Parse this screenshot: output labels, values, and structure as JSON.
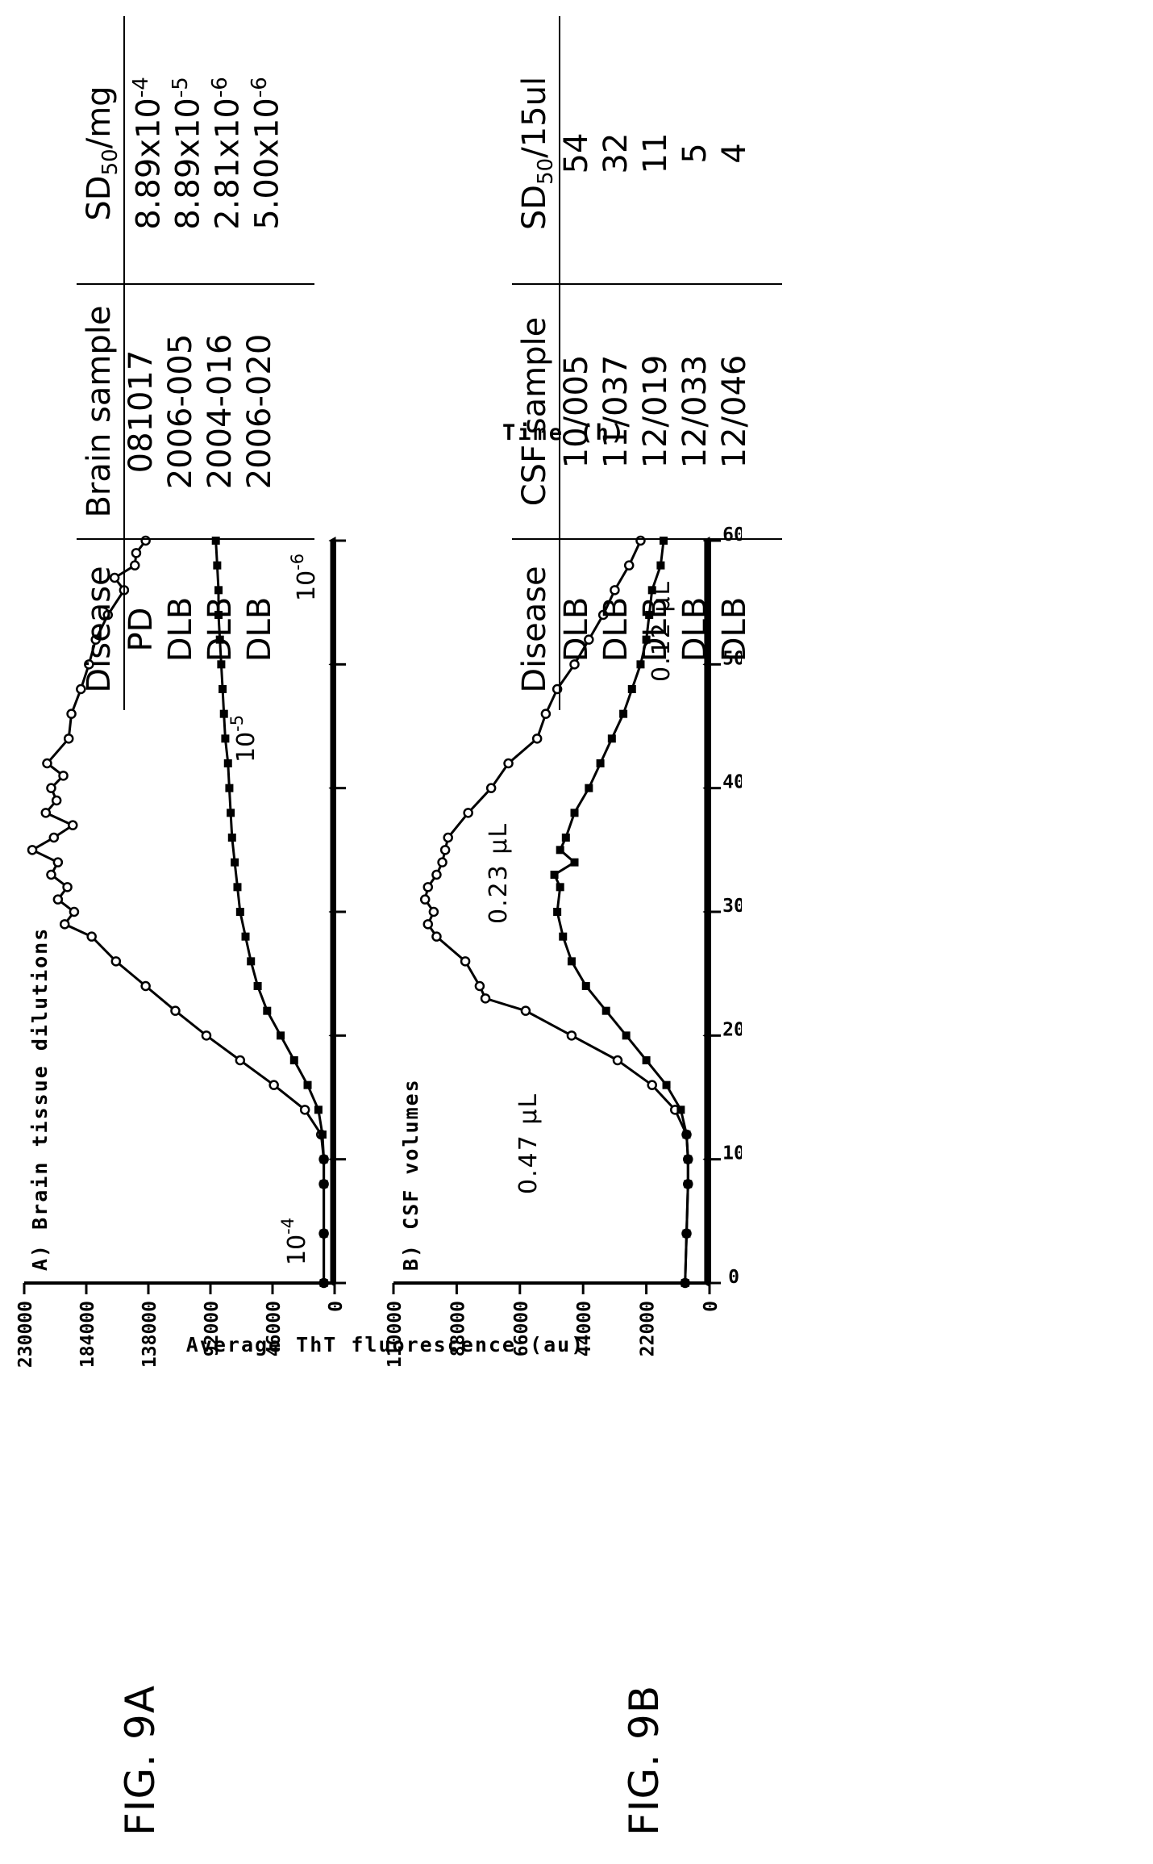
{
  "figure_labels": {
    "a": "FIG. 9A",
    "b": "FIG. 9B"
  },
  "axes": {
    "ylabel": "Average ThT fluorescence (au)",
    "xlabel": "Time (h)",
    "x_ticks": [
      "0",
      "10",
      "20",
      "30",
      "40",
      "50",
      "60"
    ]
  },
  "chart_data": [
    {
      "type": "line",
      "title": "A) Brain tissue dilutions",
      "xlabel": "Time (h)",
      "ylabel": "Average ThT fluorescence (au)",
      "xlim": [
        0,
        60
      ],
      "ylim": [
        0,
        230000
      ],
      "y_ticks": [
        "0",
        "46000",
        "92000",
        "138000",
        "184000",
        "230000"
      ],
      "grid": false,
      "series": [
        {
          "name": "10-4",
          "label_base": "10",
          "label_exp": "-4",
          "marker": "circle",
          "x": [
            0,
            4,
            8,
            10,
            12,
            14,
            16,
            18,
            20,
            22,
            24,
            26,
            28,
            29,
            30,
            31,
            32,
            33,
            34,
            35,
            36,
            37,
            38,
            39,
            40,
            41,
            42,
            44,
            46,
            48,
            50,
            52,
            54,
            56,
            57,
            58,
            59,
            60
          ],
          "y": [
            8000,
            8000,
            8000,
            8000,
            10000,
            22000,
            45000,
            70000,
            95000,
            118000,
            140000,
            162000,
            180000,
            200000,
            193000,
            205000,
            198000,
            210000,
            205000,
            224000,
            208000,
            194000,
            214000,
            206000,
            210000,
            201000,
            213000,
            197000,
            195000,
            188000,
            182000,
            177000,
            168000,
            156000,
            163000,
            148000,
            147000,
            140000
          ]
        },
        {
          "name": "10-5",
          "label_base": "10",
          "label_exp": "-5",
          "marker": "square",
          "x": [
            0,
            4,
            8,
            10,
            12,
            14,
            16,
            18,
            20,
            22,
            24,
            26,
            28,
            30,
            32,
            34,
            36,
            38,
            40,
            42,
            44,
            46,
            48,
            50,
            52,
            54,
            56,
            58,
            60
          ],
          "y": [
            8000,
            8000,
            8000,
            8000,
            9000,
            12000,
            20000,
            30000,
            40000,
            50000,
            57000,
            62000,
            66000,
            70000,
            72000,
            74000,
            76000,
            77000,
            78000,
            79000,
            81000,
            82000,
            83000,
            84000,
            85000,
            86000,
            86000,
            87000,
            88000
          ]
        },
        {
          "name": "10-6",
          "label_base": "10",
          "label_exp": "-6",
          "marker": "triangle",
          "x": [
            0,
            10,
            20,
            30,
            40,
            50,
            60
          ],
          "y": [
            1500,
            1500,
            1500,
            1500,
            1500,
            1500,
            1500
          ]
        }
      ]
    },
    {
      "type": "line",
      "title": "B) CSF volumes",
      "xlabel": "Time (h)",
      "ylabel": "Average ThT fluorescence (au)",
      "xlim": [
        0,
        60
      ],
      "ylim": [
        0,
        110000
      ],
      "y_ticks": [
        "0",
        "22000",
        "44000",
        "66000",
        "88000",
        "110000"
      ],
      "grid": false,
      "series": [
        {
          "name": "0.47 µL",
          "marker": "circle",
          "x": [
            0,
            4,
            8,
            10,
            12,
            14,
            16,
            18,
            20,
            22,
            23,
            24,
            26,
            28,
            29,
            30,
            31,
            32,
            33,
            34,
            35,
            36,
            38,
            40,
            42,
            44,
            46,
            48,
            50,
            52,
            54,
            56,
            58,
            60
          ],
          "y": [
            8500,
            8000,
            7500,
            7500,
            8000,
            12000,
            20000,
            32000,
            48000,
            64000,
            78000,
            80000,
            85000,
            95000,
            98000,
            96000,
            99000,
            98000,
            95000,
            93000,
            92000,
            91000,
            84000,
            76000,
            70000,
            60000,
            57000,
            53000,
            47000,
            42000,
            37000,
            33000,
            28000,
            24000
          ]
        },
        {
          "name": "0.23 µL",
          "marker": "square",
          "x": [
            0,
            4,
            8,
            10,
            12,
            14,
            16,
            18,
            20,
            22,
            24,
            26,
            28,
            30,
            32,
            33,
            34,
            35,
            36,
            38,
            40,
            42,
            44,
            46,
            48,
            50,
            52,
            54,
            56,
            58,
            60
          ],
          "y": [
            8500,
            8000,
            7500,
            7500,
            8000,
            10000,
            15000,
            22000,
            29000,
            36000,
            43000,
            48000,
            51000,
            53000,
            52000,
            54000,
            47000,
            52000,
            50000,
            47000,
            42000,
            38000,
            34000,
            30000,
            27000,
            24000,
            22000,
            21000,
            20000,
            17000,
            16000
          ]
        },
        {
          "name": "0.12 µL",
          "marker": "triangle",
          "x": [
            0,
            10,
            20,
            30,
            40,
            50,
            60
          ],
          "y": [
            1000,
            1000,
            1000,
            1000,
            1000,
            1000,
            1000
          ]
        }
      ]
    }
  ],
  "table_a": {
    "headers": {
      "disease": "Disease",
      "sample": "Brain sample",
      "sd_base": "SD",
      "sd_sub": "50",
      "sd_unit": "/mg"
    },
    "disease": [
      "PD",
      "DLB",
      "DLB",
      "DLB"
    ],
    "sample": [
      "081017",
      "2006-005",
      "2004-016",
      "2006-020"
    ],
    "sd_mantissa": [
      "8.89x10",
      "8.89x10",
      "2.81x10",
      "5.00x10"
    ],
    "sd_exp": [
      "-4",
      "-5",
      "-6",
      "-6"
    ]
  },
  "table_b": {
    "headers": {
      "disease": "Disease",
      "sample": "CSF sample",
      "sd_base": "SD",
      "sd_sub": "50",
      "sd_unit": "/15ul"
    },
    "disease": [
      "DLB",
      "DLB",
      "DLB",
      "DLB",
      "DLB"
    ],
    "sample": [
      "10/005",
      "11/037",
      "12/019",
      "12/033",
      "12/046"
    ],
    "sd": [
      "54",
      "32",
      "11",
      "5",
      "4"
    ]
  }
}
